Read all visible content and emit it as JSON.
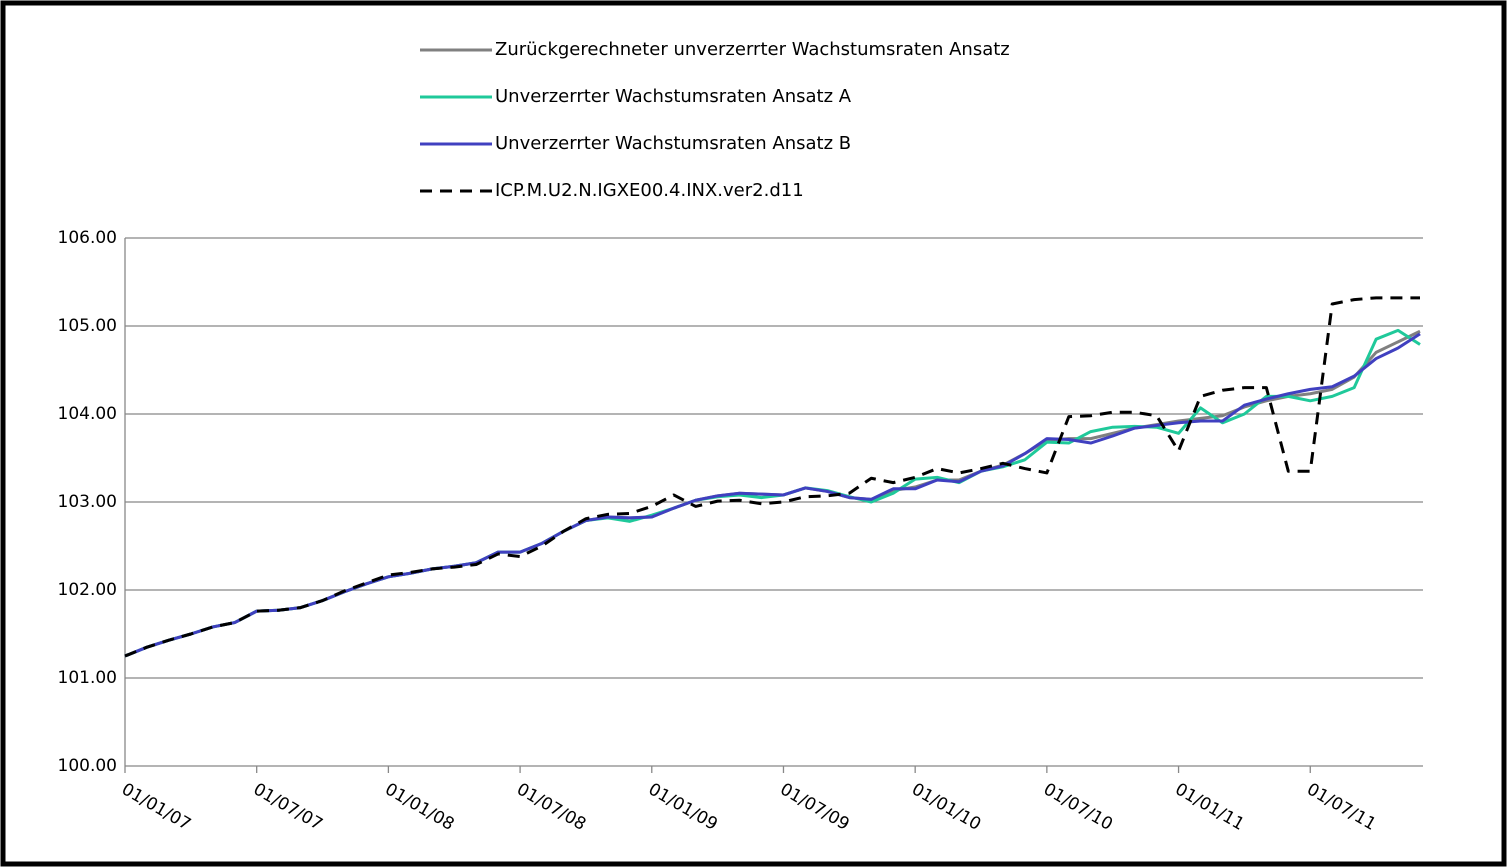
{
  "chart_data": {
    "type": "line",
    "categories": [
      "01/01/07",
      null,
      null,
      null,
      null,
      null,
      "01/07/07",
      null,
      null,
      null,
      null,
      null,
      "01/01/08",
      null,
      null,
      null,
      null,
      null,
      "01/07/08",
      null,
      null,
      null,
      null,
      null,
      "01/01/09",
      null,
      null,
      null,
      null,
      null,
      "01/07/09",
      null,
      null,
      null,
      null,
      null,
      "01/01/10",
      null,
      null,
      null,
      null,
      null,
      "01/07/10",
      null,
      null,
      null,
      null,
      null,
      "01/01/11",
      null,
      null,
      null,
      null,
      null,
      "01/07/11",
      null,
      null,
      null,
      null,
      null
    ],
    "series": [
      {
        "name": "Zurückgerechneter unverzerrter Wachstumsraten Ansatz",
        "color": "#808080",
        "dash": false,
        "values": [
          101.25,
          101.35,
          101.43,
          101.5,
          101.58,
          101.63,
          101.76,
          101.77,
          101.8,
          101.88,
          101.98,
          102.07,
          102.15,
          102.19,
          102.24,
          102.27,
          102.31,
          102.43,
          102.43,
          102.53,
          102.67,
          102.79,
          102.83,
          102.82,
          102.83,
          102.93,
          103.02,
          103.07,
          103.1,
          103.09,
          103.08,
          103.16,
          103.12,
          103.05,
          103.03,
          103.13,
          103.17,
          103.25,
          103.25,
          103.35,
          103.42,
          103.55,
          103.7,
          103.72,
          103.72,
          103.78,
          103.84,
          103.88,
          103.92,
          103.95,
          103.98,
          104.08,
          104.15,
          104.2,
          104.23,
          104.28,
          104.42,
          104.7,
          104.82,
          104.94
        ]
      },
      {
        "name": "Unverzerrter Wachstumsraten Ansatz A",
        "color": "#1fc99a",
        "dash": false,
        "values": [
          101.25,
          101.35,
          101.43,
          101.5,
          101.58,
          101.63,
          101.76,
          101.77,
          101.8,
          101.88,
          101.98,
          102.07,
          102.15,
          102.19,
          102.24,
          102.27,
          102.31,
          102.43,
          102.43,
          102.53,
          102.67,
          102.79,
          102.82,
          102.78,
          102.85,
          102.93,
          103.02,
          103.06,
          103.08,
          103.05,
          103.08,
          103.16,
          103.13,
          103.06,
          103.0,
          103.1,
          103.26,
          103.28,
          103.22,
          103.35,
          103.4,
          103.48,
          103.68,
          103.67,
          103.8,
          103.85,
          103.86,
          103.85,
          103.78,
          104.07,
          103.9,
          104.0,
          104.2,
          104.2,
          104.15,
          104.2,
          104.3,
          104.85,
          104.95,
          104.79
        ]
      },
      {
        "name": "Unverzerrter Wachstumsraten Ansatz  B",
        "color": "#4040c0",
        "dash": false,
        "values": [
          101.25,
          101.35,
          101.43,
          101.5,
          101.58,
          101.63,
          101.76,
          101.77,
          101.8,
          101.88,
          101.98,
          102.07,
          102.15,
          102.19,
          102.24,
          102.27,
          102.31,
          102.43,
          102.43,
          102.53,
          102.67,
          102.79,
          102.83,
          102.82,
          102.83,
          102.93,
          103.02,
          103.07,
          103.1,
          103.09,
          103.08,
          103.16,
          103.12,
          103.05,
          103.03,
          103.15,
          103.15,
          103.25,
          103.23,
          103.35,
          103.41,
          103.55,
          103.72,
          103.71,
          103.67,
          103.75,
          103.84,
          103.87,
          103.9,
          103.92,
          103.92,
          104.1,
          104.17,
          104.23,
          104.28,
          104.31,
          104.43,
          104.63,
          104.75,
          104.91
        ]
      },
      {
        "name": "ICP.M.U2.N.IGXE00.4.INX.ver2.d11",
        "color": "#000000",
        "dash": true,
        "values": [
          101.25,
          101.35,
          101.43,
          101.5,
          101.58,
          101.63,
          101.76,
          101.77,
          101.8,
          101.88,
          101.99,
          102.08,
          102.17,
          102.2,
          102.24,
          102.26,
          102.29,
          102.41,
          102.38,
          102.5,
          102.67,
          102.81,
          102.86,
          102.87,
          102.95,
          103.08,
          102.95,
          103.01,
          103.02,
          102.98,
          103.0,
          103.06,
          103.07,
          103.1,
          103.27,
          103.22,
          103.28,
          103.38,
          103.33,
          103.38,
          103.44,
          103.38,
          103.33,
          103.97,
          103.98,
          104.02,
          104.02,
          103.98,
          103.58,
          104.2,
          104.27,
          104.3,
          104.3,
          103.35,
          103.35,
          105.25,
          105.3,
          105.32,
          105.32,
          105.32
        ]
      }
    ],
    "ylim": [
      100,
      106
    ],
    "yticks": [
      {
        "value": 100,
        "label": "100.00"
      },
      {
        "value": 101,
        "label": "101.00"
      },
      {
        "value": 102,
        "label": "102.00"
      },
      {
        "value": 103,
        "label": "103.00"
      },
      {
        "value": 104,
        "label": "104.00"
      },
      {
        "value": 105,
        "label": "105.00"
      },
      {
        "value": 106,
        "label": "106.00"
      }
    ],
    "grid": true
  }
}
